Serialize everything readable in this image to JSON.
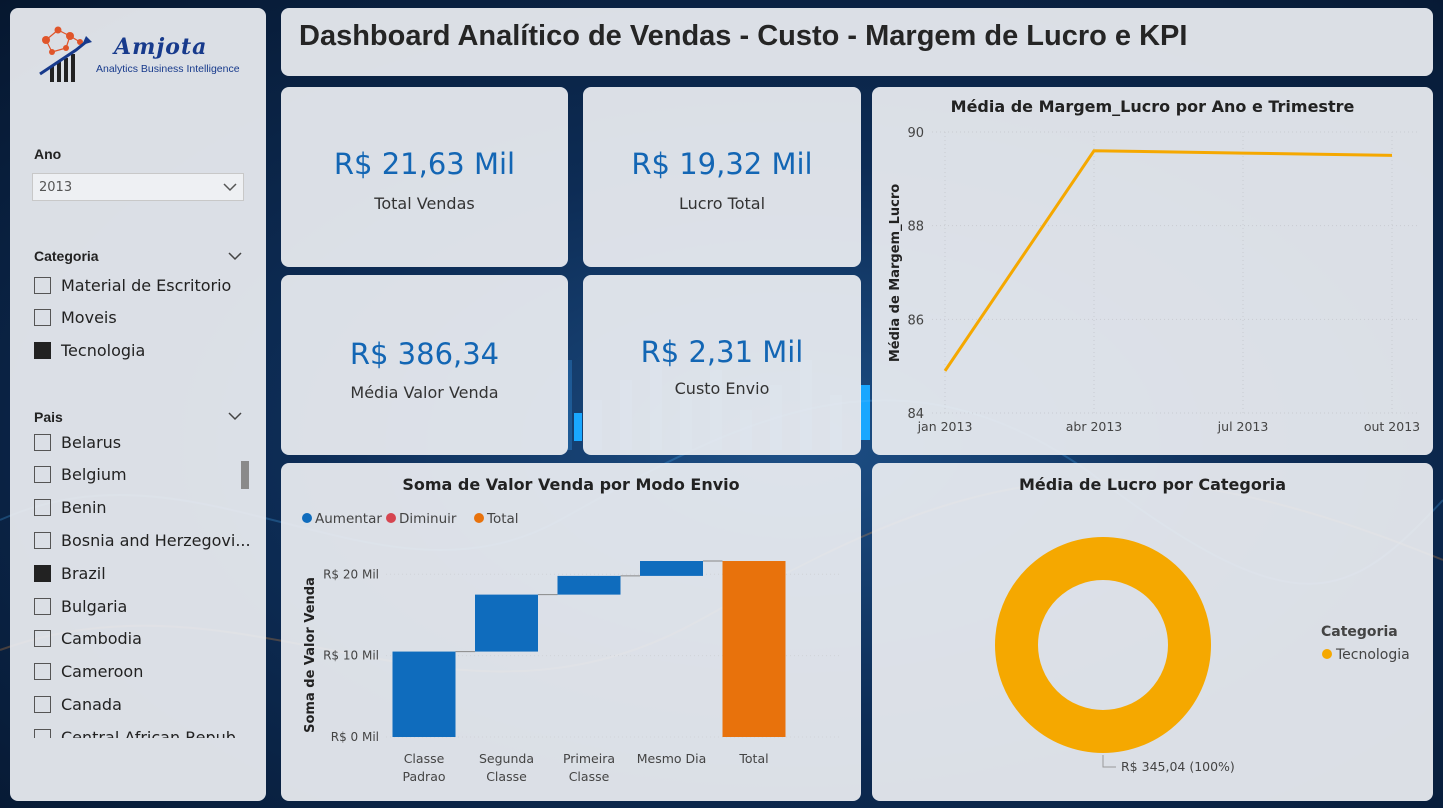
{
  "header": {
    "title": "Dashboard Analítico de Vendas - Custo - Margem de Lucro e KPI"
  },
  "logo": {
    "name": "Amjota",
    "subtitle": "Analytics Business Intelligence"
  },
  "slicers": {
    "ano": {
      "title": "Ano",
      "selected": "2013"
    },
    "categoria": {
      "title": "Categoria",
      "items": [
        {
          "label": "Material de Escritorio",
          "checked": false
        },
        {
          "label": "Moveis",
          "checked": false
        },
        {
          "label": "Tecnologia",
          "checked": true
        }
      ]
    },
    "pais": {
      "title": "Pais",
      "items": [
        {
          "label": "Belarus",
          "checked": false
        },
        {
          "label": "Belgium",
          "checked": false
        },
        {
          "label": "Benin",
          "checked": false
        },
        {
          "label": "Bosnia and Herzegovi...",
          "checked": false
        },
        {
          "label": "Brazil",
          "checked": true
        },
        {
          "label": "Bulgaria",
          "checked": false
        },
        {
          "label": "Cambodia",
          "checked": false
        },
        {
          "label": "Cameroon",
          "checked": false
        },
        {
          "label": "Canada",
          "checked": false
        },
        {
          "label": "Central African Repub...",
          "checked": false
        }
      ]
    }
  },
  "kpis": [
    {
      "value": "R$ 21,63 Mil",
      "label": "Total Vendas"
    },
    {
      "value": "R$ 19,32 Mil",
      "label": "Lucro Total"
    },
    {
      "value": "R$ 386,34",
      "label": "Média Valor Venda"
    },
    {
      "value": "R$ 2,31 Mil",
      "label": "Custo Envio"
    }
  ],
  "colors": {
    "accent_blue": "#1366b4",
    "line_orange": "#f5a800",
    "waterfall_increase": "#0f6cbd",
    "waterfall_decrease": "#d64550",
    "waterfall_total": "#e8720c",
    "donut": "#f5a800"
  },
  "chart_data": [
    {
      "type": "line",
      "title": "Média de Margem_Lucro por Ano e Trimestre",
      "ylabel": "Média de Margem_Lucro",
      "x": [
        "jan 2013",
        "abr 2013",
        "jul 2013",
        "out 2013"
      ],
      "y_ticks": [
        84,
        86,
        88,
        90
      ],
      "ylim": [
        84,
        90
      ],
      "series": [
        {
          "values": [
            84.9,
            89.6,
            89.55,
            89.5
          ]
        }
      ],
      "grid": true
    },
    {
      "type": "bar",
      "subtype": "waterfall",
      "title": "Soma de Valor Venda por Modo Envio",
      "ylabel": "Soma de Valor Venda",
      "legend": [
        "Aumentar",
        "Diminuir",
        "Total"
      ],
      "legend_placement": "top-left",
      "categories": [
        "Classe Padrao",
        "Segunda Classe",
        "Primeira Classe",
        "Mesmo Dia",
        "Total"
      ],
      "values": [
        10.5,
        7.0,
        2.3,
        1.83,
        21.63
      ],
      "y_ticks": [
        "R$ 0 Mil",
        "R$ 10 Mil",
        "R$ 20 Mil"
      ],
      "ylim": [
        0,
        22
      ],
      "unit": "R$ Mil"
    },
    {
      "type": "pie",
      "subtype": "donut",
      "title": "Média de Lucro por Categoria",
      "legend_title": "Categoria",
      "legend_placement": "right",
      "categories": [
        "Tecnologia"
      ],
      "values": [
        345.04
      ],
      "data_label": "R$ 345,04 (100%)"
    }
  ]
}
